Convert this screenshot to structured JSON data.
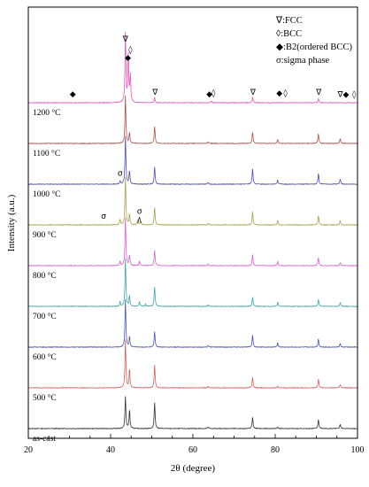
{
  "chart_data": {
    "type": "line",
    "title": "",
    "xlabel": "2θ (degree)",
    "ylabel": "Intensity (a.u.)",
    "xlim": [
      20,
      100
    ],
    "x_ticks": [
      20,
      40,
      60,
      80,
      100
    ],
    "grid": false,
    "legend_position": "top-right",
    "legend": [
      {
        "marker": "∇",
        "label": "∇:FCC"
      },
      {
        "marker": "◊",
        "label": "◊:BCC"
      },
      {
        "marker": "◆",
        "label": "◆:B2(ordered BCC)"
      },
      {
        "marker": "σ",
        "label": "σ:sigma phase"
      }
    ],
    "peak_markers": [
      {
        "symbol": "∇",
        "x": 43.6,
        "trace": "1200 °C",
        "level": 11
      },
      {
        "symbol": "◊",
        "x": 44.8,
        "trace": "1200 °C",
        "level": 9
      },
      {
        "symbol": "◆",
        "x": 44.2,
        "trace": "1200 °C",
        "level": 7.5
      },
      {
        "symbol": "◆",
        "x": 30.8,
        "trace": "1200 °C",
        "level": 0.7
      },
      {
        "symbol": "∇",
        "x": 50.8,
        "trace": "1200 °C",
        "level": 1.0
      },
      {
        "symbol": "◆",
        "x": 64.0,
        "trace": "1200 °C",
        "level": 0.7
      },
      {
        "symbol": "◊",
        "x": 65.0,
        "trace": "1200 °C",
        "level": 0.8
      },
      {
        "symbol": "∇",
        "x": 74.6,
        "trace": "1200 °C",
        "level": 1.0
      },
      {
        "symbol": "◆",
        "x": 81.0,
        "trace": "1200 °C",
        "level": 0.8
      },
      {
        "symbol": "◊",
        "x": 82.5,
        "trace": "1200 °C",
        "level": 0.8
      },
      {
        "symbol": "∇",
        "x": 90.6,
        "trace": "1200 °C",
        "level": 1.0
      },
      {
        "symbol": "∇",
        "x": 95.8,
        "trace": "1200 °C",
        "level": 0.6
      },
      {
        "symbol": "◆",
        "x": 97.2,
        "trace": "1200 °C",
        "level": 0.6
      },
      {
        "symbol": "◊",
        "x": 99.2,
        "trace": "1200 °C",
        "level": 0.6
      },
      {
        "symbol": "σ",
        "x": 42.3,
        "trace": "1000 °C",
        "level": 1.1
      },
      {
        "symbol": "σ",
        "x": 38.3,
        "trace": "900 °C",
        "level": 0.7
      },
      {
        "symbol": "σ",
        "x": 47.0,
        "trace": "900 °C",
        "level": 1.6
      }
    ],
    "series": [
      {
        "name": "as-cast",
        "color": "#333333",
        "peaks": [
          [
            43.6,
            6.0
          ],
          [
            44.6,
            3.5
          ],
          [
            50.7,
            5.0
          ],
          [
            74.5,
            2.2
          ],
          [
            90.5,
            1.7
          ],
          [
            95.8,
            0.8
          ],
          [
            63.7,
            0.3
          ],
          [
            80.6,
            0.3
          ]
        ]
      },
      {
        "name": "500 °C",
        "color": "#d9605c",
        "peaks": [
          [
            43.6,
            9.0
          ],
          [
            44.6,
            3.5
          ],
          [
            50.7,
            4.5
          ],
          [
            74.5,
            2.0
          ],
          [
            90.5,
            1.6
          ],
          [
            95.8,
            0.6
          ],
          [
            63.7,
            0.3
          ],
          [
            80.6,
            0.3
          ]
        ]
      },
      {
        "name": "600 °C",
        "color": "#4a55b8",
        "peaks": [
          [
            43.6,
            9.0
          ],
          [
            44.6,
            2.0
          ],
          [
            50.7,
            3.0
          ],
          [
            74.5,
            2.3
          ],
          [
            80.6,
            0.8
          ],
          [
            90.5,
            1.6
          ],
          [
            95.8,
            0.7
          ],
          [
            63.7,
            0.3
          ]
        ]
      },
      {
        "name": "700 °C",
        "color": "#3fa7a4",
        "peaks": [
          [
            42.3,
            0.8
          ],
          [
            43.6,
            9.0
          ],
          [
            44.6,
            2.0
          ],
          [
            47.0,
            0.9
          ],
          [
            48.5,
            0.5
          ],
          [
            50.7,
            3.8
          ],
          [
            74.5,
            1.8
          ],
          [
            80.6,
            0.8
          ],
          [
            90.5,
            1.3
          ],
          [
            95.8,
            0.7
          ],
          [
            63.7,
            0.3
          ]
        ]
      },
      {
        "name": "800 °C",
        "color": "#e060d6",
        "peaks": [
          [
            42.3,
            0.8
          ],
          [
            43.6,
            9.0
          ],
          [
            44.6,
            2.0
          ],
          [
            47.0,
            0.8
          ],
          [
            50.7,
            3.0
          ],
          [
            74.5,
            2.1
          ],
          [
            80.6,
            0.8
          ],
          [
            90.5,
            1.5
          ],
          [
            95.8,
            0.6
          ],
          [
            63.7,
            0.3
          ]
        ]
      },
      {
        "name": "900 °C",
        "color": "#a7a34a",
        "peaks": [
          [
            42.3,
            1.0
          ],
          [
            43.6,
            9.0
          ],
          [
            44.6,
            2.0
          ],
          [
            46.6,
            1.0
          ],
          [
            47.3,
            0.8
          ],
          [
            50.7,
            3.4
          ],
          [
            74.5,
            2.5
          ],
          [
            80.6,
            0.8
          ],
          [
            90.5,
            1.8
          ],
          [
            95.8,
            0.8
          ],
          [
            63.7,
            0.3
          ]
        ]
      },
      {
        "name": "1000 °C",
        "color": "#4f4fb0",
        "peaks": [
          [
            42.3,
            0.6
          ],
          [
            43.6,
            9.0
          ],
          [
            44.6,
            2.5
          ],
          [
            50.7,
            3.3
          ],
          [
            74.5,
            3.0
          ],
          [
            80.6,
            0.8
          ],
          [
            90.5,
            2.0
          ],
          [
            95.8,
            1.0
          ],
          [
            63.7,
            0.3
          ]
        ]
      },
      {
        "name": "1100 °C",
        "color": "#b0504a",
        "peaks": [
          [
            43.6,
            9.0
          ],
          [
            44.6,
            2.0
          ],
          [
            50.7,
            3.3
          ],
          [
            74.5,
            2.2
          ],
          [
            80.6,
            0.8
          ],
          [
            90.5,
            1.8
          ],
          [
            95.8,
            0.9
          ],
          [
            63.7,
            0.3
          ]
        ]
      },
      {
        "name": "1200 °C",
        "color": "#e45ab8",
        "peaks": [
          [
            43.6,
            13.0
          ],
          [
            44.3,
            9.0
          ],
          [
            44.8,
            5.0
          ],
          [
            50.7,
            1.0
          ],
          [
            74.5,
            1.0
          ],
          [
            90.5,
            0.8
          ],
          [
            64.5,
            0.3
          ]
        ]
      }
    ]
  }
}
